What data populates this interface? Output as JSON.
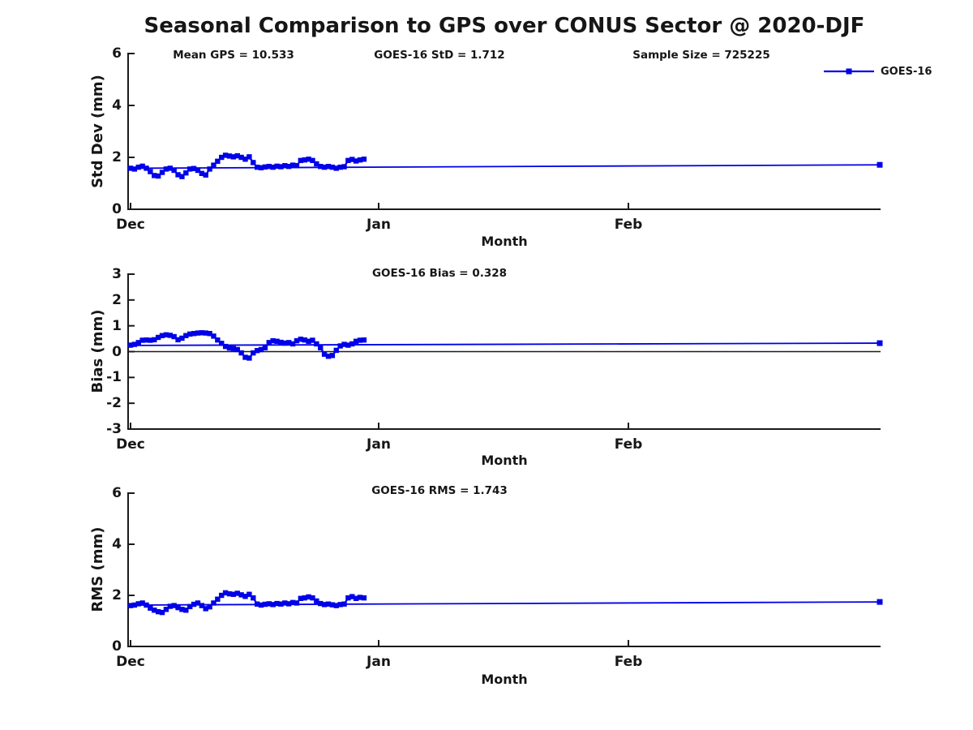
{
  "title": "Seasonal Comparison to GPS over CONUS Sector @ 2020-DJF",
  "legend": {
    "label": "GOES-16",
    "position": "top-right"
  },
  "colors": {
    "series": "#0000E8",
    "axis": "#1a1a1a",
    "zero_line": "#1a1a1a",
    "text": "#161616",
    "background": "#ffffff"
  },
  "chart_data": [
    {
      "type": "line",
      "id": "std-dev",
      "annotations": [
        "Mean GPS = 10.533",
        "GOES-16 StD = 1.712",
        "Sample Size = 725225"
      ],
      "ylabel": "Std Dev (mm)",
      "xlabel": "Month",
      "ylim": [
        0,
        6
      ],
      "yticks": [
        0,
        2,
        4,
        6
      ],
      "xtick_labels": [
        "Dec",
        "Jan",
        "Feb"
      ],
      "grid": false,
      "zero_line": false,
      "stat_line": {
        "start": 1.58,
        "end": 1.712
      },
      "final_point": 1.712,
      "series": [
        {
          "name": "GOES-16",
          "x_start_day": 0,
          "x_step_days": 0.5,
          "values": [
            1.58,
            1.55,
            1.62,
            1.66,
            1.58,
            1.45,
            1.3,
            1.28,
            1.42,
            1.55,
            1.58,
            1.5,
            1.33,
            1.26,
            1.4,
            1.55,
            1.57,
            1.5,
            1.38,
            1.32,
            1.55,
            1.7,
            1.85,
            2.0,
            2.08,
            2.05,
            2.02,
            2.06,
            2.0,
            1.93,
            2.02,
            1.8,
            1.62,
            1.6,
            1.63,
            1.65,
            1.62,
            1.66,
            1.64,
            1.68,
            1.65,
            1.7,
            1.68,
            1.88,
            1.9,
            1.93,
            1.88,
            1.75,
            1.65,
            1.62,
            1.65,
            1.62,
            1.58,
            1.62,
            1.64,
            1.88,
            1.92,
            1.86,
            1.9,
            1.93
          ]
        }
      ]
    },
    {
      "type": "line",
      "id": "bias",
      "annotations": [
        "GOES-16 Bias = 0.328"
      ],
      "ylabel": "Bias (mm)",
      "xlabel": "Month",
      "ylim": [
        -3,
        3
      ],
      "yticks": [
        -3,
        -2,
        -1,
        0,
        1,
        2,
        3
      ],
      "xtick_labels": [
        "Dec",
        "Jan",
        "Feb"
      ],
      "grid": false,
      "zero_line": true,
      "stat_line": {
        "start": 0.24,
        "end": 0.328
      },
      "final_point": 0.328,
      "series": [
        {
          "name": "GOES-16",
          "x_start_day": 0,
          "x_step_days": 0.5,
          "values": [
            0.25,
            0.28,
            0.35,
            0.44,
            0.45,
            0.44,
            0.46,
            0.55,
            0.62,
            0.65,
            0.63,
            0.58,
            0.46,
            0.52,
            0.62,
            0.68,
            0.7,
            0.72,
            0.73,
            0.72,
            0.7,
            0.6,
            0.45,
            0.32,
            0.2,
            0.14,
            0.12,
            0.08,
            -0.05,
            -0.22,
            -0.25,
            -0.05,
            0.04,
            0.08,
            0.15,
            0.35,
            0.42,
            0.4,
            0.36,
            0.33,
            0.35,
            0.3,
            0.42,
            0.48,
            0.45,
            0.4,
            0.44,
            0.3,
            0.15,
            -0.1,
            -0.18,
            -0.15,
            0.05,
            0.22,
            0.28,
            0.25,
            0.3,
            0.4,
            0.44,
            0.45
          ]
        }
      ]
    },
    {
      "type": "line",
      "id": "rms",
      "annotations": [
        "GOES-16 RMS = 1.743"
      ],
      "ylabel": "RMS (mm)",
      "xlabel": "Month",
      "ylim": [
        0,
        6
      ],
      "yticks": [
        0,
        2,
        4,
        6
      ],
      "xtick_labels": [
        "Dec",
        "Jan",
        "Feb"
      ],
      "grid": false,
      "zero_line": false,
      "stat_line": {
        "start": 1.62,
        "end": 1.743
      },
      "final_point": 1.743,
      "series": [
        {
          "name": "GOES-16",
          "x_start_day": 0,
          "x_step_days": 0.5,
          "values": [
            1.6,
            1.62,
            1.67,
            1.7,
            1.62,
            1.5,
            1.42,
            1.36,
            1.33,
            1.45,
            1.57,
            1.6,
            1.52,
            1.45,
            1.42,
            1.56,
            1.65,
            1.7,
            1.6,
            1.48,
            1.55,
            1.7,
            1.85,
            2.0,
            2.1,
            2.06,
            2.04,
            2.08,
            2.02,
            1.96,
            2.04,
            1.9,
            1.66,
            1.62,
            1.65,
            1.67,
            1.64,
            1.68,
            1.66,
            1.7,
            1.67,
            1.72,
            1.7,
            1.88,
            1.9,
            1.94,
            1.9,
            1.78,
            1.68,
            1.64,
            1.66,
            1.63,
            1.6,
            1.64,
            1.66,
            1.9,
            1.95,
            1.88,
            1.92,
            1.9
          ]
        }
      ]
    }
  ]
}
